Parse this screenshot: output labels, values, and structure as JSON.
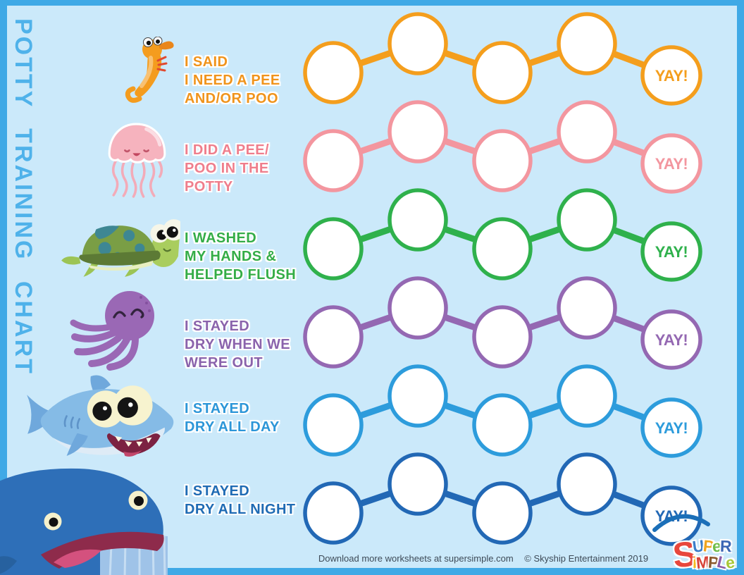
{
  "title": "POTTY TRAINING CHART",
  "colors": {
    "background": "#CBE9FA",
    "border": "#3FA9E6",
    "title_text": "#4FB2EA",
    "footer_text": "#3D4A57"
  },
  "rows": [
    {
      "animal": "seahorse",
      "color": "#F49E1D",
      "text_color": "#F0941C",
      "lines": [
        "I SAID",
        "I NEED A PEE",
        "AND/OR POO"
      ],
      "yay": "YAY!"
    },
    {
      "animal": "jellyfish",
      "color": "#F3969F",
      "text_color": "#EF7E8C",
      "lines": [
        "I DID A PEE/",
        "POO IN THE",
        "POTTY"
      ],
      "yay": "YAY!"
    },
    {
      "animal": "turtle",
      "color": "#2FB14C",
      "text_color": "#34AD47",
      "lines": [
        "I WASHED",
        "MY HANDS &",
        "HELPED FLUSH"
      ],
      "yay": "YAY!"
    },
    {
      "animal": "octopus",
      "color": "#9468B2",
      "text_color": "#8A63AC",
      "lines": [
        "I STAYED",
        "DRY WHEN WE",
        "WERE OUT"
      ],
      "yay": "YAY!"
    },
    {
      "animal": "shark",
      "color": "#2D9CDC",
      "text_color": "#2C96D8",
      "lines": [
        "I STAYED",
        "DRY ALL DAY"
      ],
      "yay": "YAY!"
    },
    {
      "animal": "whale",
      "color": "#2268B5",
      "text_color": "#1F6BB4",
      "lines": [
        "I STAYED",
        "DRY ALL NIGHT"
      ],
      "yay": "YAY!"
    }
  ],
  "chain": {
    "circles_per_row": 5,
    "yay_circle_index": 4
  },
  "footer": {
    "download": "Download more worksheets at supersimple.com",
    "copyright": "© Skyship Entertainment 2019"
  },
  "logo": {
    "big_letter": {
      "ch": "S",
      "color": "#E8473C"
    },
    "line1": [
      {
        "ch": "U",
        "color": "#3C7DC8"
      },
      {
        "ch": "P",
        "color": "#F0A51F"
      },
      {
        "ch": "e",
        "color": "#6FBE4A"
      },
      {
        "ch": "R",
        "color": "#3C66B4"
      }
    ],
    "line2": [
      {
        "ch": "i",
        "color": "#F5B91E"
      },
      {
        "ch": "M",
        "color": "#D8443A"
      },
      {
        "ch": "P",
        "color": "#8A5A2E"
      },
      {
        "ch": "L",
        "color": "#8C5BA8"
      },
      {
        "ch": "e",
        "color": "#A8C838"
      }
    ]
  }
}
